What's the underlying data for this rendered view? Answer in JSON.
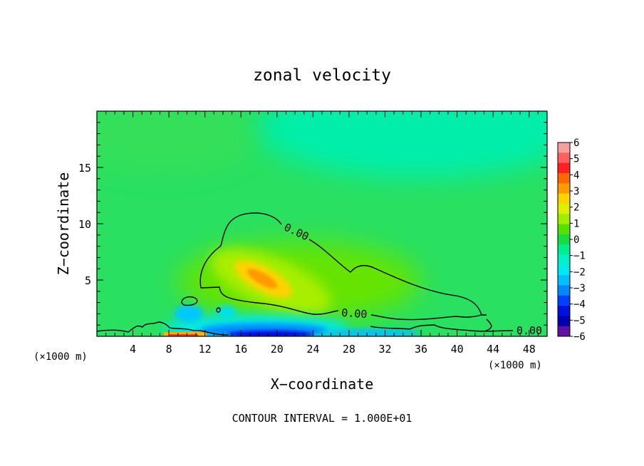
{
  "chart_data": {
    "type": "heatmap",
    "title": "zonal velocity",
    "xlabel": "X−coordinate",
    "ylabel": "Z−coordinate",
    "x_unit_left": "(×1000 m)",
    "x_unit_right": "(×1000 m)",
    "xlim": [
      0,
      50
    ],
    "ylim": [
      0,
      20
    ],
    "x_ticks": [
      4,
      8,
      12,
      16,
      20,
      24,
      28,
      32,
      36,
      40,
      44,
      48
    ],
    "y_ticks": [
      5,
      10,
      15
    ],
    "footer": "CONTOUR INTERVAL = 1.000E+01",
    "colorbar": {
      "levels": [
        6,
        5,
        4,
        3,
        2,
        1,
        0,
        -1,
        -2,
        -3,
        -4,
        -5,
        -6
      ],
      "labels": [
        "6",
        "5",
        "4",
        "3",
        "2",
        "1",
        "0",
        "−1",
        "−2",
        "−3",
        "−4",
        "−5",
        "−6"
      ],
      "colors": [
        "#f2a0a0",
        "#ff6060",
        "#ff2020",
        "#ff6a00",
        "#ff9a00",
        "#ffd200",
        "#ddf000",
        "#a0ee00",
        "#55e000",
        "#18dd40",
        "#00ee90",
        "#00f0c8",
        "#00e8f0",
        "#00c0ff",
        "#0088ff",
        "#0040ff",
        "#0010e0",
        "#0000b0",
        "#6010a0"
      ]
    },
    "contour_labels": [
      {
        "text": "0.00",
        "x": 22.0,
        "y": 9.2
      },
      {
        "text": "0.00",
        "x": 28.0,
        "y": 2.0
      },
      {
        "text": "0.00",
        "x": 47.2,
        "y": 0.5
      }
    ]
  }
}
